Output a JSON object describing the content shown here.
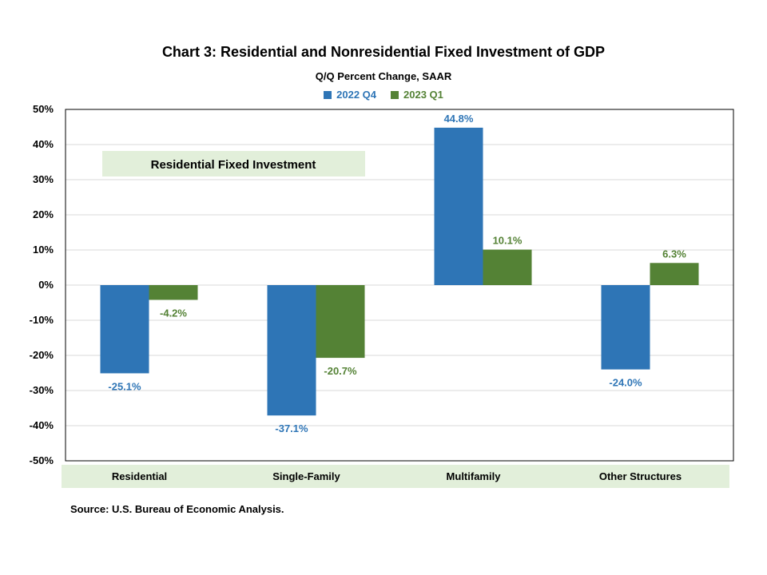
{
  "chart_data": {
    "type": "bar",
    "title": "Chart 3: Residential and Nonresidential  Fixed Investment of GDP",
    "subtitle": "Q/Q Percent Change, SAAR",
    "categories": [
      "Residential",
      "Single-Family",
      "Multifamily",
      "Other Structures"
    ],
    "series": [
      {
        "name": "2022 Q4",
        "color": "#2e75b6",
        "values": [
          -25.1,
          -37.1,
          44.8,
          -24.0
        ],
        "labels": [
          "-25.1%",
          "-37.1%",
          "44.8%",
          "-24.0%"
        ]
      },
      {
        "name": "2023 Q1",
        "color": "#548235",
        "values": [
          -4.2,
          -20.7,
          10.1,
          6.3
        ],
        "labels": [
          "-4.2%",
          "-20.7%",
          "10.1%",
          "6.3%"
        ]
      }
    ],
    "ylim": [
      -50,
      50
    ],
    "yticks": [
      50,
      40,
      30,
      20,
      10,
      0,
      -10,
      -20,
      -30,
      -40,
      -50
    ],
    "ytick_labels": [
      "50%",
      "40%",
      "30%",
      "20%",
      "10%",
      "0%",
      "-10%",
      "-20%",
      "-30%",
      "-40%",
      "-50%"
    ],
    "grid": true,
    "legend_position": "top-center",
    "annotation": "Residential Fixed Investment",
    "category_band_color": "#e2efda",
    "annotation_box_color": "#e2efda"
  },
  "source": "Source: U.S. Bureau of Economic Analysis."
}
